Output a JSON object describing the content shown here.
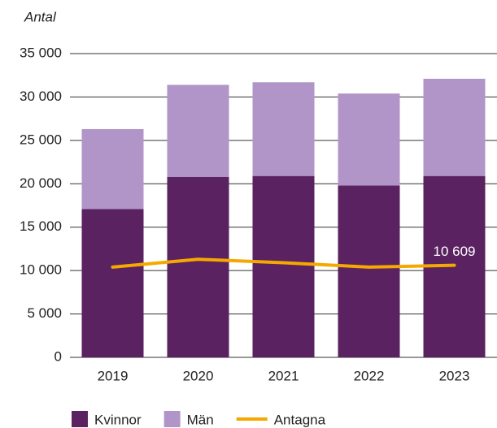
{
  "chart_data": {
    "type": "bar",
    "stacked": true,
    "ylabel": "Antal",
    "categories": [
      "2019",
      "2020",
      "2021",
      "2022",
      "2023"
    ],
    "series": [
      {
        "name": "Kvinnor",
        "color": "#5a2260",
        "values": [
          17100,
          20800,
          20900,
          19800,
          20900
        ]
      },
      {
        "name": "Män",
        "color": "#b195c8",
        "values": [
          9200,
          10600,
          10800,
          10600,
          11200
        ]
      },
      {
        "name": "Antagna",
        "type": "line",
        "color": "#f5a800",
        "values": [
          10400,
          11300,
          10900,
          10400,
          10609
        ],
        "value_labels": [
          null,
          null,
          null,
          null,
          "10 609"
        ]
      }
    ],
    "ylim": [
      0,
      35000
    ],
    "yticks": [
      0,
      {
        "value": 5000,
        "label": "5 000"
      },
      {
        "value": 10000,
        "label": "10 000"
      },
      {
        "value": 15000,
        "label": "15 000"
      },
      {
        "value": 20000,
        "label": "20 000"
      },
      {
        "value": 25000,
        "label": "25 000"
      },
      {
        "value": 30000,
        "label": "30 000"
      },
      {
        "value": 35000,
        "label": "35 000"
      }
    ],
    "grid": true,
    "legend": "bottom"
  }
}
